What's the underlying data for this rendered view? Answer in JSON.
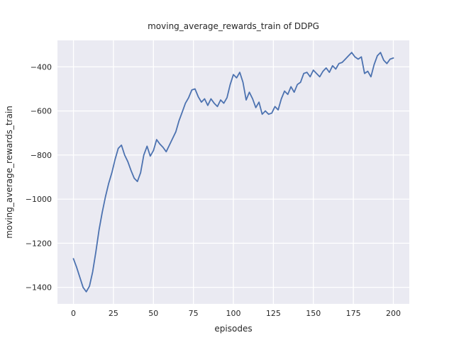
{
  "figure": {
    "background": "#ffffff",
    "plot_background": "#eaeaf2",
    "grid_color": "#ffffff",
    "text_color": "#262626",
    "line_color": "#4c72b0"
  },
  "chart_data": {
    "type": "line",
    "title": "moving_average_rewards_train of DDPG",
    "xlabel": "episodes",
    "ylabel": "moving_average_rewards_train",
    "xlim": [
      -10,
      210
    ],
    "ylim": [
      -1475,
      -280
    ],
    "xticks": [
      0,
      25,
      50,
      75,
      100,
      125,
      150,
      175,
      200
    ],
    "yticks": [
      -400,
      -600,
      -800,
      -1000,
      -1200,
      -1400
    ],
    "grid": true,
    "legend_position": "none",
    "series": [
      {
        "name": "moving_average_rewards_train",
        "x": [
          0,
          2,
          4,
          6,
          8,
          10,
          12,
          14,
          16,
          18,
          20,
          22,
          24,
          26,
          28,
          30,
          32,
          34,
          36,
          38,
          40,
          42,
          44,
          46,
          48,
          50,
          52,
          54,
          56,
          58,
          60,
          62,
          64,
          66,
          68,
          70,
          72,
          74,
          76,
          78,
          80,
          82,
          84,
          86,
          88,
          90,
          92,
          94,
          96,
          98,
          100,
          102,
          104,
          106,
          108,
          110,
          112,
          114,
          116,
          118,
          120,
          122,
          124,
          126,
          128,
          130,
          132,
          134,
          136,
          138,
          140,
          142,
          144,
          146,
          148,
          150,
          152,
          154,
          156,
          158,
          160,
          162,
          164,
          166,
          168,
          170,
          172,
          174,
          176,
          178,
          180,
          182,
          184,
          186,
          188,
          190,
          192,
          194,
          196,
          198,
          200
        ],
        "y": [
          -1270,
          -1310,
          -1355,
          -1400,
          -1420,
          -1395,
          -1330,
          -1240,
          -1140,
          -1060,
          -990,
          -930,
          -880,
          -820,
          -770,
          -755,
          -800,
          -830,
          -870,
          -905,
          -920,
          -880,
          -800,
          -760,
          -805,
          -780,
          -730,
          -750,
          -765,
          -785,
          -755,
          -725,
          -695,
          -645,
          -605,
          -565,
          -540,
          -505,
          -500,
          -535,
          -560,
          -545,
          -575,
          -545,
          -565,
          -580,
          -550,
          -565,
          -540,
          -480,
          -435,
          -450,
          -425,
          -470,
          -550,
          -515,
          -545,
          -585,
          -560,
          -615,
          -600,
          -615,
          -610,
          -580,
          -595,
          -545,
          -510,
          -525,
          -490,
          -515,
          -480,
          -470,
          -430,
          -425,
          -445,
          -415,
          -430,
          -445,
          -420,
          -405,
          -425,
          -395,
          -410,
          -385,
          -380,
          -365,
          -350,
          -335,
          -355,
          -365,
          -355,
          -430,
          -420,
          -445,
          -390,
          -350,
          -335,
          -370,
          -385,
          -365,
          -360
        ]
      }
    ]
  }
}
